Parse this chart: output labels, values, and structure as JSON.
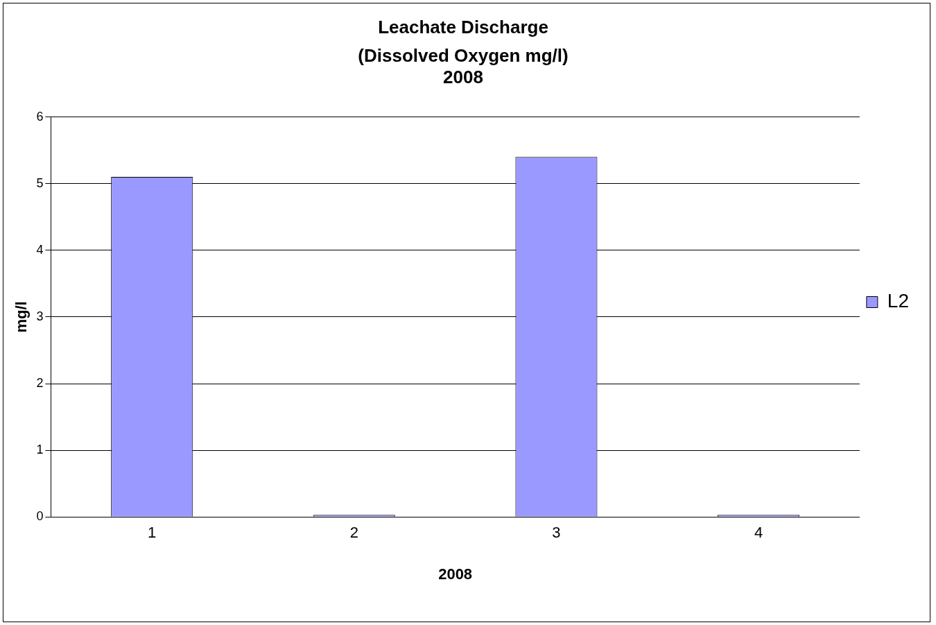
{
  "chart_data": {
    "type": "bar",
    "title": "Leachate Discharge",
    "subtitle": "(Dissolved Oxygen mg/l)\n2008",
    "xlabel": "2008",
    "ylabel": "mg/l",
    "categories": [
      "1",
      "2",
      "3",
      "4"
    ],
    "series": [
      {
        "name": "L2",
        "color": "#9999ff",
        "values": [
          5.1,
          0,
          5.4,
          0
        ]
      }
    ],
    "ylim": [
      0,
      6
    ],
    "yticks": [
      0,
      1,
      2,
      3,
      4,
      5,
      6
    ],
    "grid": "y",
    "legend": "right"
  }
}
